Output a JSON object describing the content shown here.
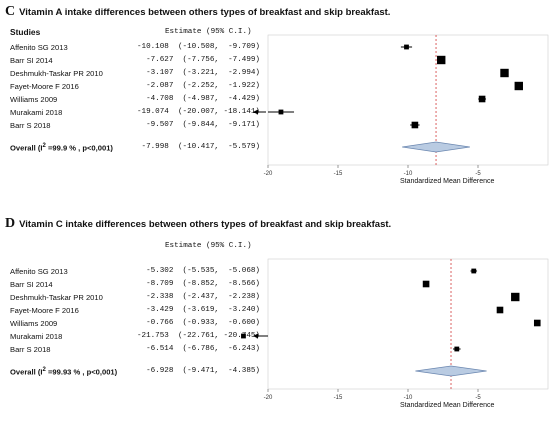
{
  "chart_data": [
    {
      "type": "forest",
      "panel_label": "C",
      "title": "Vitamin A intake differences between others types of breakfast and skip breakfast.",
      "studies_header": "Studies",
      "estimate_header": "Estimate (95% C.I.)",
      "xlabel": "Standardized Mean Difference",
      "xlim": [
        -20,
        0
      ],
      "xticks": [
        "-20",
        "-15",
        "-10",
        "-5"
      ],
      "tick_values": [
        -20,
        -15,
        -10,
        -5
      ],
      "reference_line": -7.998,
      "rows": [
        {
          "study": "Affenito SG 2013",
          "est": -10.108,
          "lo": -10.508,
          "hi": -9.709,
          "text": "-10.108  (-10.508,  -9.709)",
          "weight": 1
        },
        {
          "study": "Barr SI 2014",
          "est": -7.627,
          "lo": -7.756,
          "hi": -7.499,
          "text": "-7.627  (-7.756,  -7.499)",
          "weight": 3
        },
        {
          "study": "Deshmukh-Taskar PR 2010",
          "est": -3.107,
          "lo": -3.221,
          "hi": -2.994,
          "text": "-3.107  (-3.221,  -2.994)",
          "weight": 3
        },
        {
          "study": "Fayet-Moore F 2016",
          "est": -2.087,
          "lo": -2.252,
          "hi": -1.922,
          "text": "-2.087  (-2.252,  -1.922)",
          "weight": 3
        },
        {
          "study": "Williams 2009",
          "est": -4.708,
          "lo": -4.987,
          "hi": -4.429,
          "text": "-4.708  (-4.987,  -4.429)",
          "weight": 2
        },
        {
          "study": "Murakami 2018",
          "est": -19.074,
          "lo": -20.007,
          "hi": -18.141,
          "text": "-19.074  (-20.007, -18.141)",
          "weight": 1,
          "arrow": true
        },
        {
          "study": "Barr S 2018",
          "est": -9.507,
          "lo": -9.844,
          "hi": -9.171,
          "text": "-9.507  (-9.844,  -9.171)",
          "weight": 2
        }
      ],
      "overall": {
        "label_prefix": "Overall (I",
        "label_sup": "2",
        "label_suffix": " =99.9 % , p<0,001)",
        "est": -7.998,
        "lo": -10.417,
        "hi": -5.579,
        "text": "-7.998  (-10.417,  -5.579)"
      },
      "colors": {
        "marker": "#000000",
        "diamond_fill": "#b9cbe2",
        "diamond_stroke": "#6b87b0",
        "ref_line": "#d23b3b"
      }
    },
    {
      "type": "forest",
      "panel_label": "D",
      "title": "Vitamin C intake differences between others types of breakfast and skip breakfast.",
      "studies_header": "Studies",
      "estimate_header": "Estimate (95% C.I.)",
      "xlabel": "Standardized Mean Difference",
      "xlim": [
        -20,
        0
      ],
      "xticks": [
        "-20",
        "-15",
        "-10",
        "-5"
      ],
      "tick_values": [
        -20,
        -15,
        -10,
        -5
      ],
      "reference_line": -6.928,
      "rows": [
        {
          "study": "Affenito SG 2013",
          "est": -5.302,
          "lo": -5.535,
          "hi": -5.068,
          "text": "-5.302  (-5.535,  -5.068)",
          "weight": 1
        },
        {
          "study": "Barr SI 2014",
          "est": -8.709,
          "lo": -8.852,
          "hi": -8.566,
          "text": "-8.709  (-8.852,  -8.566)",
          "weight": 2
        },
        {
          "study": "Deshmukh-Taskar PR 2010",
          "est": -2.338,
          "lo": -2.437,
          "hi": -2.238,
          "text": "-2.338  (-2.437,  -2.238)",
          "weight": 3
        },
        {
          "study": "Fayet-Moore F 2016",
          "est": -3.429,
          "lo": -3.619,
          "hi": -3.24,
          "text": "-3.429  (-3.619,  -3.240)",
          "weight": 2
        },
        {
          "study": "Williams 2009",
          "est": -0.766,
          "lo": -0.933,
          "hi": -0.6,
          "text": "-0.766  (-0.933,  -0.600)",
          "weight": 2
        },
        {
          "study": "Murakami 2018",
          "est": -21.753,
          "lo": -22.761,
          "hi": -20.745,
          "text": "-21.753  (-22.761, -20.745)",
          "weight": 1,
          "arrow": true
        },
        {
          "study": "Barr S 2018",
          "est": -6.514,
          "lo": -6.786,
          "hi": -6.243,
          "text": "-6.514  (-6.786,  -6.243)",
          "weight": 1
        }
      ],
      "overall": {
        "label_prefix": "Overall (I",
        "label_sup": "2",
        "label_suffix": " =99.93 % , p<0,001)",
        "est": -6.928,
        "lo": -9.471,
        "hi": -4.385,
        "text": "-6.928  (-9.471,  -4.385)"
      },
      "colors": {
        "marker": "#000000",
        "diamond_fill": "#b9cbe2",
        "diamond_stroke": "#6b87b0",
        "ref_line": "#d23b3b"
      }
    }
  ]
}
